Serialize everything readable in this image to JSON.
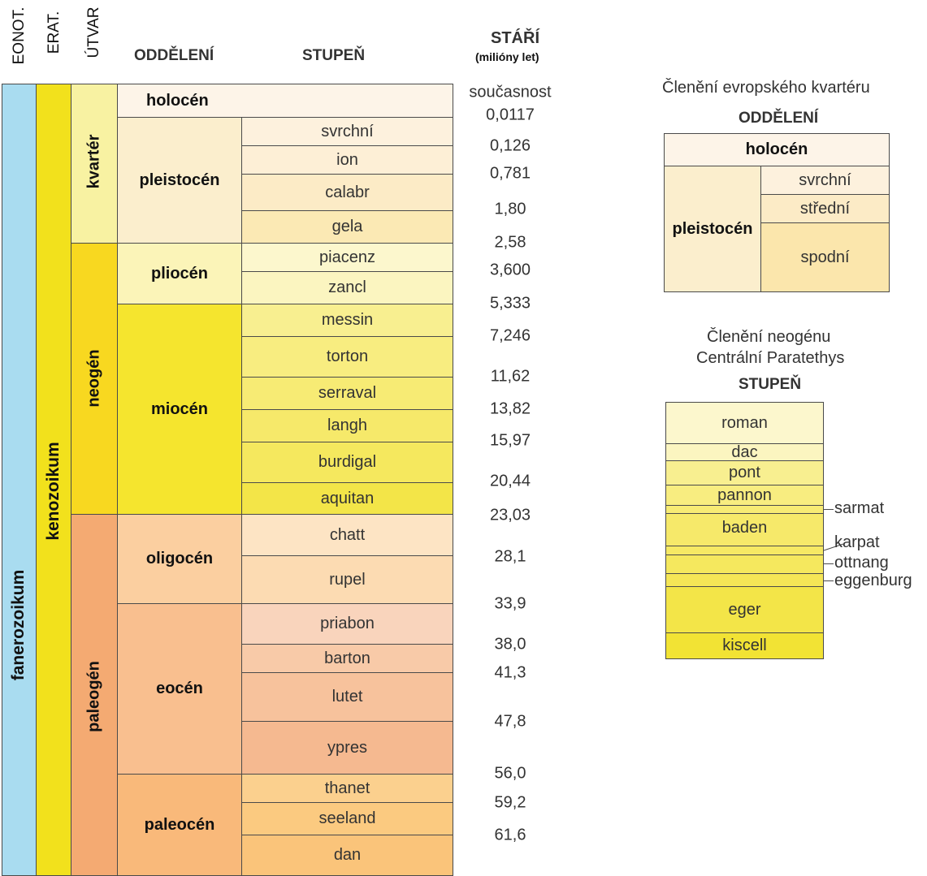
{
  "headers": {
    "eonotem": "EONOT.",
    "eratem": "ERAT.",
    "utvar": "ÚTVAR",
    "oddeleni": "ODDĚLENÍ",
    "stupen": "STUPEŇ",
    "stari": "STÁŘÍ",
    "stari_unit": "(milióny let)"
  },
  "columns": {
    "eon": "fanerozoikum",
    "era": "kenozoikum",
    "periods": [
      "kvartér",
      "neogén",
      "paleogén"
    ]
  },
  "epochs": [
    "holocén",
    "pleistocén",
    "pliocén",
    "miocén",
    "oligocén",
    "eocén",
    "paleocén"
  ],
  "stages": [
    "svrchní",
    "ion",
    "calabr",
    "gela",
    "piacenz",
    "zancl",
    "messin",
    "torton",
    "serraval",
    "langh",
    "burdigal",
    "aquitan",
    "chatt",
    "rupel",
    "priabon",
    "barton",
    "lutet",
    "ypres",
    "thanet",
    "seeland",
    "dan"
  ],
  "ages": [
    "současnost",
    "0,0117",
    "0,126",
    "0,781",
    "1,80",
    "2,58",
    "3,600",
    "5,333",
    "7,246",
    "11,62",
    "13,82",
    "15,97",
    "20,44",
    "23,03",
    "28,1",
    "33,9",
    "38,0",
    "41,3",
    "47,8",
    "56,0",
    "59,2",
    "61,6"
  ],
  "quaternary_box": {
    "title": "Členění evropského kvartéru",
    "header": "ODDĚLENÍ",
    "holocene": "holocén",
    "pleistocene": "pleistocén",
    "substages": [
      "svrchní",
      "střední",
      "spodní"
    ]
  },
  "neogene_box": {
    "title_line1": "Členění neogénu",
    "title_line2": "Centrální Paratethys",
    "header": "STUPEŇ",
    "stages": [
      "roman",
      "dac",
      "pont",
      "pannon",
      "baden",
      "eger",
      "kiscell"
    ],
    "side_labels": [
      "sarmat",
      "karpat",
      "ottnang",
      "eggenburg"
    ]
  },
  "colors": {
    "eon": "#a9dcf0",
    "era": "#f2e11c",
    "kvarter": "#f8f2a2",
    "neogen": "#f8d820",
    "paleogen": "#f4aa72"
  }
}
